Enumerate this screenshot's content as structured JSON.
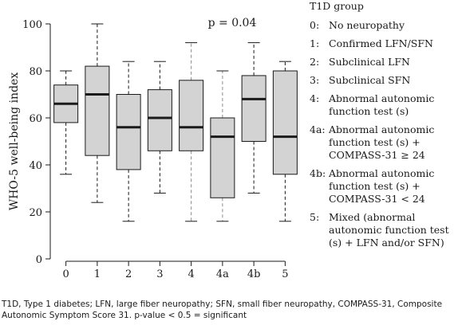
{
  "chart_data": {
    "type": "boxplot",
    "ylabel": "WHO-5 well-being index",
    "ylim": [
      0,
      100
    ],
    "yticks": [
      0,
      20,
      40,
      60,
      80,
      100
    ],
    "annotation": "p = 0.04",
    "categories": [
      "0",
      "1",
      "2",
      "3",
      "4",
      "4a",
      "4b",
      "5"
    ],
    "boxes": [
      {
        "category": "0",
        "min": 36,
        "q1": 58,
        "median": 66,
        "q3": 74,
        "max": 80
      },
      {
        "category": "1",
        "min": 24,
        "q1": 44,
        "median": 70,
        "q3": 82,
        "max": 100
      },
      {
        "category": "2",
        "min": 16,
        "q1": 38,
        "median": 56,
        "q3": 70,
        "max": 84
      },
      {
        "category": "3",
        "min": 28,
        "q1": 46,
        "median": 60,
        "q3": 72,
        "max": 84
      },
      {
        "category": "4",
        "min": 16,
        "q1": 46,
        "median": 56,
        "q3": 76,
        "max": 92
      },
      {
        "category": "4a",
        "min": 16,
        "q1": 26,
        "median": 52,
        "q3": 60,
        "max": 80
      },
      {
        "category": "4b",
        "min": 28,
        "q1": 50,
        "median": 68,
        "q3": 78,
        "max": 92
      },
      {
        "category": "5",
        "min": 16,
        "q1": 36,
        "median": 52,
        "q3": 80,
        "max": 84
      }
    ],
    "grid": false,
    "colors": {
      "box_fill": "#d3d3d3",
      "stroke": "#1a1a1a",
      "whisker_light": "#8c8c8c"
    }
  },
  "legend": {
    "title": "T1D group",
    "items": [
      {
        "code": "0:",
        "label": "No neuropathy"
      },
      {
        "code": "1:",
        "label": "Confirmed LFN/SFN"
      },
      {
        "code": "2:",
        "label": "Subclinical LFN"
      },
      {
        "code": "3:",
        "label": "Subclinical SFN"
      },
      {
        "code": "4:",
        "label": "Abnormal autonomic function test (s)"
      },
      {
        "code": "4a:",
        "label": "Abnormal autonomic function test (s) + COMPASS-31 ≥ 24"
      },
      {
        "code": "4b:",
        "label": "Abnormal autonomic function test (s) + COMPASS-31 < 24"
      },
      {
        "code": "5:",
        "label": "Mixed (abnormal autonomic function test (s) + LFN and/or SFN)"
      }
    ]
  },
  "footnote": "T1D, Type 1 diabetes; LFN, large fiber neuropathy; SFN, small fiber neuropathy, COMPASS-31, Composite Autonomic Symptom Score 31. p-value < 0.5 = significant"
}
